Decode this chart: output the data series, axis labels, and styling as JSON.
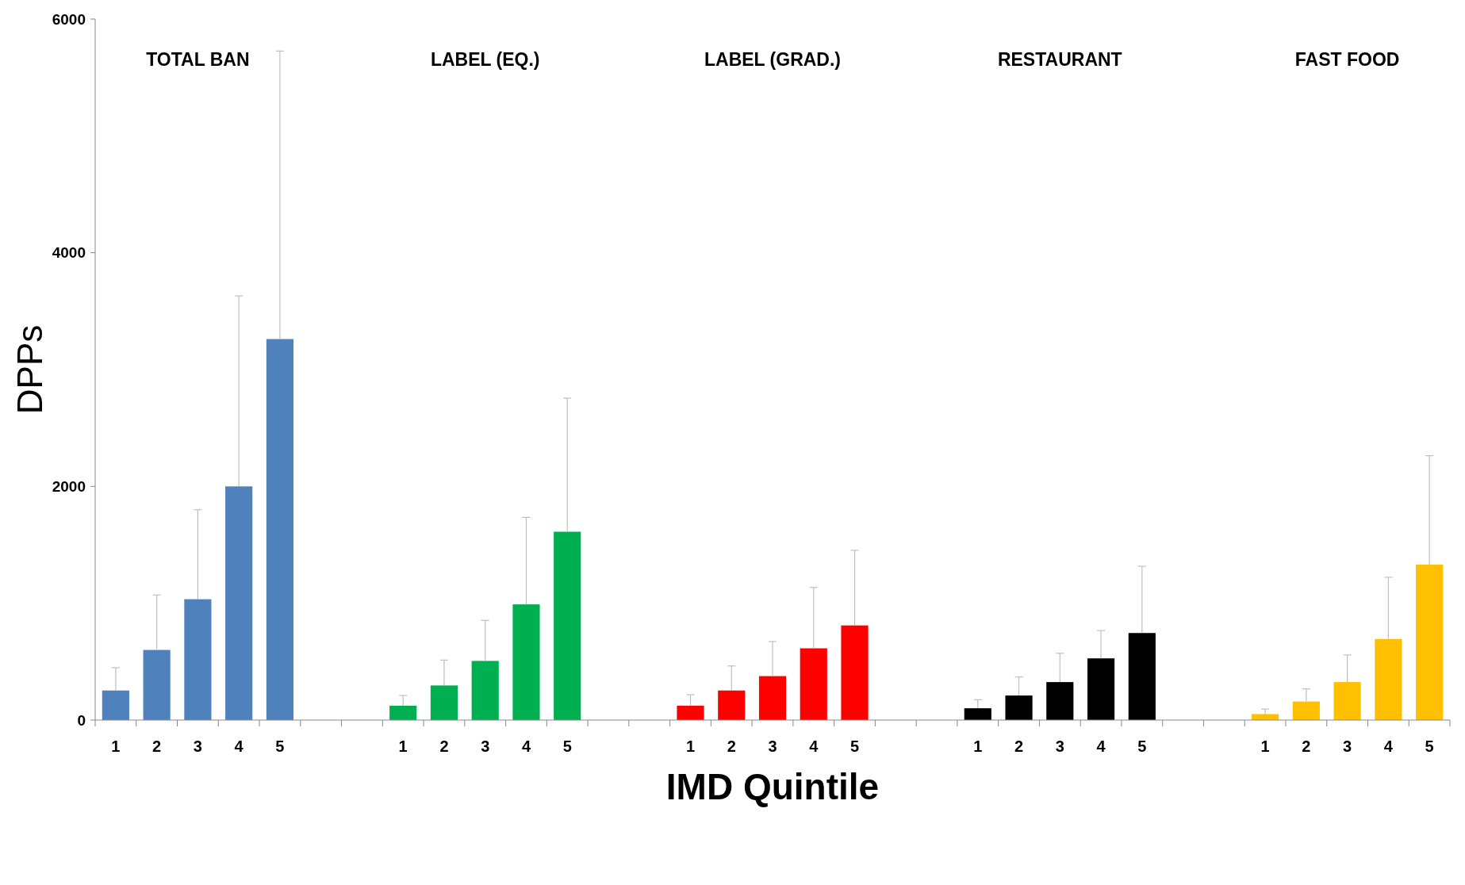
{
  "chart_data": {
    "type": "bar",
    "xlabel": "IMD Quintile",
    "ylabel": "DPPs",
    "categories": [
      "1",
      "2",
      "3",
      "4",
      "5",
      null,
      null,
      "1",
      "2",
      "3",
      "4",
      "5",
      null,
      null,
      "1",
      "2",
      "3",
      "4",
      "5",
      null,
      null,
      "1",
      "2",
      "3",
      "4",
      "5",
      null,
      null,
      "1",
      "2",
      "3",
      "4",
      "5"
    ],
    "values": [
      253,
      600,
      1034,
      2000,
      3261,
      null,
      null,
      123,
      296,
      506,
      990,
      1612,
      null,
      null,
      123,
      253,
      376,
      614,
      810,
      null,
      null,
      101,
      210,
      325,
      528,
      745,
      null,
      null,
      51,
      159,
      325,
      694,
      1330
    ],
    "errors": [
      [
        253,
        448
      ],
      [
        600,
        1070
      ],
      [
        1034,
        1800
      ],
      [
        2000,
        3630
      ],
      [
        3261,
        5726
      ],
      null,
      null,
      [
        123,
        210
      ],
      [
        296,
        513
      ],
      [
        506,
        853
      ],
      [
        990,
        1735
      ],
      [
        1612,
        2755
      ],
      null,
      null,
      [
        123,
        217
      ],
      [
        253,
        463
      ],
      [
        376,
        672
      ],
      [
        614,
        1135
      ],
      [
        810,
        1453
      ],
      null,
      null,
      [
        101,
        174
      ],
      [
        210,
        369
      ],
      [
        325,
        571
      ],
      [
        528,
        766
      ],
      [
        745,
        1316
      ],
      null,
      null,
      [
        51,
        94
      ],
      [
        159,
        267
      ],
      [
        325,
        557
      ],
      [
        694,
        1222
      ],
      [
        1330,
        2263
      ]
    ],
    "colors": [
      "#4f81bd",
      "#4f81bd",
      "#4f81bd",
      "#4f81bd",
      "#4f81bd",
      null,
      null,
      "#00b050",
      "#00b050",
      "#00b050",
      "#00b050",
      "#00b050",
      null,
      null,
      "#ff0000",
      "#ff0000",
      "#ff0000",
      "#ff0000",
      "#ff0000",
      null,
      null,
      "#000000",
      "#000000",
      "#000000",
      "#000000",
      "#000000",
      null,
      null,
      "#ffc000",
      "#ffc000",
      "#ffc000",
      "#ffc000",
      "#ffc000"
    ],
    "annotations": [
      "TOTAL BAN",
      "LABEL (EQ.)",
      "LABEL (GRAD.)",
      "RESTAURANT",
      "FAST FOOD"
    ],
    "ylim": [
      0,
      6000
    ],
    "yticks": [
      0,
      2000,
      4000,
      6000
    ],
    "grid": false
  }
}
